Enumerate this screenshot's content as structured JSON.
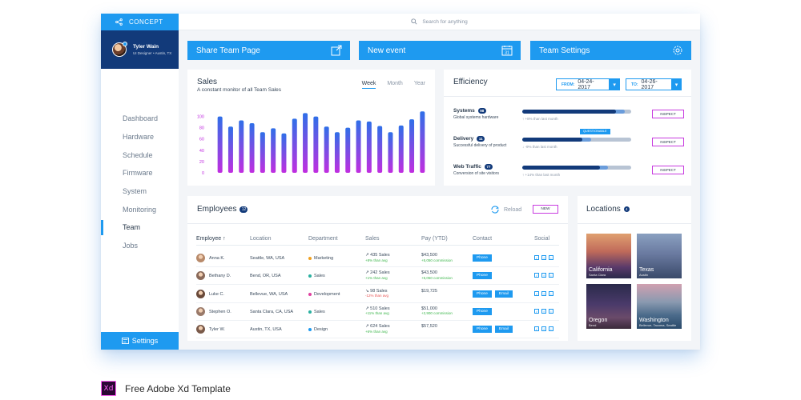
{
  "brand": {
    "name": "CONCEPT"
  },
  "user": {
    "name": "Tyler Wain",
    "role": "UI Designer • Austin, TX"
  },
  "search": {
    "placeholder": "Search for anything"
  },
  "nav": {
    "items": [
      "Dashboard",
      "Hardware",
      "Schedule",
      "Firmware",
      "System",
      "Monitoring",
      "Team",
      "Jobs"
    ],
    "active": "Team",
    "settings": "Settings"
  },
  "actions": {
    "share": "Share Team Page",
    "event": "New event",
    "settings": "Team Settings"
  },
  "sales": {
    "title": "Sales",
    "subtitle": "A constant monitor of all Team Sales",
    "tabs": [
      "Week",
      "Month",
      "Year"
    ],
    "active_tab": "Week",
    "chart_data": {
      "type": "bar",
      "yticks": [
        0,
        20,
        40,
        60,
        80,
        100
      ],
      "ylim": [
        0,
        115
      ],
      "values": [
        100,
        82,
        93,
        88,
        72,
        79,
        70,
        96,
        106,
        100,
        82,
        72,
        80,
        93,
        91,
        83,
        72,
        84,
        95,
        109
      ]
    }
  },
  "efficiency": {
    "title": "Efficiency",
    "from_label": "FROM:",
    "from": "04-24-2017",
    "to_label": "TO:",
    "to": "04-26-2017",
    "rows": [
      {
        "name": "Systems",
        "badge": "98",
        "sub": "Global systems hardware",
        "note": "↑ +8% than last month",
        "value": 0.86,
        "inspect": "INSPECT"
      },
      {
        "name": "Delivery",
        "badge": "11",
        "sub": "Successful delivery of product",
        "note": "↓ -9% than last month",
        "value": 0.55,
        "tag": "QUESTIONABLE",
        "inspect": "INSPECT"
      },
      {
        "name": "Web Traffic",
        "badge": "77",
        "sub": "Conversion of site visitors",
        "note": "↑ +14% than last month",
        "value": 0.71,
        "inspect": "INSPECT"
      }
    ]
  },
  "employees": {
    "title": "Employees",
    "count": "12",
    "reload": "Reload",
    "new": "NEW",
    "headers": [
      "Employee ↑",
      "Location",
      "Department",
      "Sales",
      "Pay (YTD)",
      "Contact",
      "Social"
    ],
    "rows": [
      {
        "name": "Anna K.",
        "location": "Seattle, WA, USA",
        "dept": "Marketing",
        "dept_color": "#f0a020",
        "sales": "↗ 435 Sales",
        "sales_sub": "+8% than avg",
        "sales_trend": "up",
        "pay": "$43,500",
        "pay_sub": "+5,050 commission",
        "contact": [
          "Phone"
        ]
      },
      {
        "name": "Bethany D.",
        "location": "Bend, OR, USA",
        "dept": "Sales",
        "dept_color": "#2ab0a0",
        "sales": "↗ 242 Sales",
        "sales_sub": "+1% than avg",
        "sales_trend": "up",
        "pay": "$43,500",
        "pay_sub": "+5,050 commission",
        "contact": [
          "Phone"
        ]
      },
      {
        "name": "Luke C.",
        "location": "Bellevue, WA, USA",
        "dept": "Development",
        "dept_color": "#e040a0",
        "sales": "↘ 98 Sales",
        "sales_sub": "-12% than avg",
        "sales_trend": "down",
        "pay": "$19,725",
        "pay_sub": "",
        "contact": [
          "Phone",
          "Email"
        ]
      },
      {
        "name": "Stephen O.",
        "location": "Santa Clara, CA, USA",
        "dept": "Sales",
        "dept_color": "#2ab0a0",
        "sales": "↗ 510 Sales",
        "sales_sub": "+11% than avg",
        "sales_trend": "up",
        "pay": "$51,000",
        "pay_sub": "+2,900 commission",
        "contact": [
          "Phone"
        ]
      },
      {
        "name": "Tyler W.",
        "location": "Austin, TX, USA",
        "dept": "Design",
        "dept_color": "#1e9af0",
        "sales": "↗ 624 Sales",
        "sales_sub": "+6% than avg",
        "sales_trend": "up",
        "pay": "$57,520",
        "pay_sub": "",
        "contact": [
          "Phone",
          "Email"
        ]
      }
    ]
  },
  "locations": {
    "title": "Locations",
    "count": "4",
    "tiles": [
      {
        "name": "California",
        "sub": "Santa Clara"
      },
      {
        "name": "Texas",
        "sub": "Austin"
      },
      {
        "name": "Oregon",
        "sub": "Bend"
      },
      {
        "name": "Washington",
        "sub": "Bellevue, Tacoma, Seattle"
      }
    ]
  },
  "footer": {
    "xd": "Xd",
    "text": "Free Adobe Xd Template"
  }
}
